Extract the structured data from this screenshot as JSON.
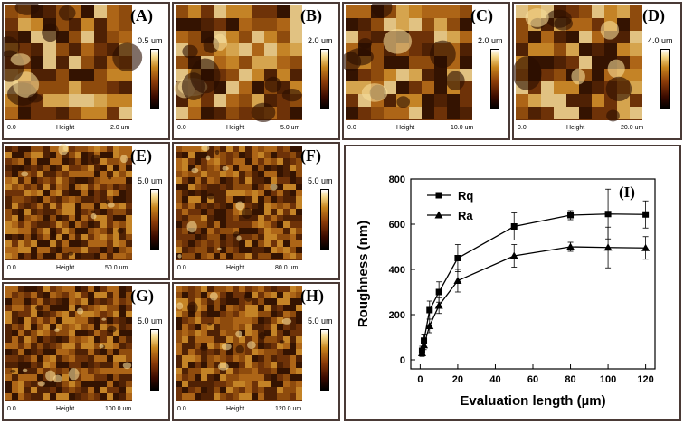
{
  "panels": [
    {
      "label": "(A)",
      "scale": "0.5 um",
      "foot_left": "0.0",
      "foot_mid": "Height",
      "foot_right": "2.0 um"
    },
    {
      "label": "(B)",
      "scale": "2.0 um",
      "foot_left": "0.0",
      "foot_mid": "Height",
      "foot_right": "5.0 um"
    },
    {
      "label": "(C)",
      "scale": "2.0 um",
      "foot_left": "0.0",
      "foot_mid": "Height",
      "foot_right": "10.0 um"
    },
    {
      "label": "(D)",
      "scale": "4.0 um",
      "foot_left": "0.0",
      "foot_mid": "Height",
      "foot_right": "20.0 um"
    },
    {
      "label": "(E)",
      "scale": "5.0 um",
      "foot_left": "0.0",
      "foot_mid": "Height",
      "foot_right": "50.0 um"
    },
    {
      "label": "(F)",
      "scale": "5.0 um",
      "foot_left": "0.0",
      "foot_mid": "Height",
      "foot_right": "80.0 um"
    },
    {
      "label": "(G)",
      "scale": "5.0 um",
      "foot_left": "0.0",
      "foot_mid": "Height",
      "foot_right": "100.0 um"
    },
    {
      "label": "(H)",
      "scale": "5.0 um",
      "foot_left": "0.0",
      "foot_mid": "Height",
      "foot_right": "120.0 um"
    }
  ],
  "colors": {
    "afm_dark": "#3a1500",
    "afm_mid": "#9a5010",
    "afm_light": "#f0cf80",
    "frame": "#4a3a36"
  },
  "chart_data": {
    "type": "line",
    "panel_label": "(I)",
    "xlabel": "Evaluation length (µm)",
    "ylabel": "Roughness (nm)",
    "xlim": [
      -5,
      125
    ],
    "ylim": [
      -40,
      800
    ],
    "xticks": [
      0,
      20,
      40,
      60,
      80,
      100,
      120
    ],
    "yticks": [
      0,
      200,
      400,
      600,
      800
    ],
    "x": [
      1,
      2,
      5,
      10,
      20,
      50,
      80,
      100,
      120
    ],
    "series": [
      {
        "name": "Rq",
        "marker": "square",
        "values": [
          40,
          85,
          220,
          300,
          450,
          590,
          640,
          645,
          643
        ],
        "errors": [
          20,
          25,
          40,
          45,
          60,
          60,
          20,
          110,
          60
        ]
      },
      {
        "name": "Ra",
        "marker": "triangle",
        "values": [
          30,
          65,
          150,
          240,
          350,
          460,
          500,
          497,
          495
        ],
        "errors": [
          15,
          20,
          30,
          35,
          50,
          50,
          20,
          90,
          50
        ]
      }
    ],
    "legend_position": "top-left"
  }
}
